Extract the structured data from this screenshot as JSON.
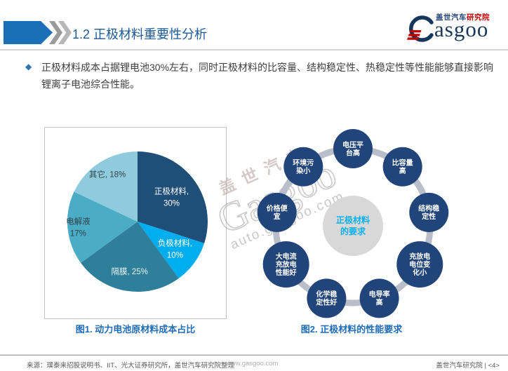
{
  "header": {
    "title": "1.2 正极材料重要性分析",
    "logo": {
      "brand_cn": "盖世汽车",
      "brand_cn_red": "研究院",
      "brand_en_tail": "asgoo",
      "brand_full": "Gasgoo"
    }
  },
  "icons": {
    "bullet_diamond": "◆"
  },
  "bullet": {
    "text": "正极材料成本占据锂电池30%左右，同时正极材料的比容量、结构稳定性、热稳定性等性能能够直接影响锂离子电池综合性能。"
  },
  "chart_data": [
    {
      "type": "pie",
      "title": "图1. 动力电池原材料成本占比",
      "start_angle_deg_from_top": 0,
      "clockwise": true,
      "unit": "%",
      "slices": [
        {
          "label": "正极材料",
          "value": 30,
          "color": "#1F4E79",
          "label_lines": [
            "正极材料,",
            "30%"
          ],
          "label_color": "#FFFFFF",
          "label_r": 0.6
        },
        {
          "label": "负极材料",
          "value": 10,
          "color": "#00AEEF",
          "label_lines": [
            "负极材料,",
            "10%"
          ],
          "label_color": "#FFFFFF",
          "label_r": 0.66
        },
        {
          "label": "隔膜",
          "value": 25,
          "color": "#2E7F99",
          "label_lines": [
            "隔膜, 25%"
          ],
          "label_color": "#EAF3F6",
          "label_r": 0.72
        },
        {
          "label": "电解液",
          "value": 17,
          "color": "#4BACC6",
          "label_lines": [
            "电解液",
            "17%"
          ],
          "label_color": "#33434C",
          "label_r": 0.85
        },
        {
          "label": "其它",
          "value": 18,
          "color": "#8FCBDC",
          "label_lines": [
            "其它, 18%"
          ],
          "label_color": "#33434C",
          "label_r": 0.8
        }
      ]
    },
    {
      "type": "cycle-diagram",
      "title": "图2. 正极材料的性能要求",
      "center": {
        "lines": [
          "正极材料",
          "的要求"
        ],
        "bg_color": "#D8D8D8",
        "text_color": "#00B0F0"
      },
      "node_color": "#21457A",
      "node_text_color": "#FFFFFF",
      "ring_color": "#B9BEC8",
      "nodes": [
        {
          "label": "电压平台高",
          "lines": [
            "电压平",
            "台高"
          ]
        },
        {
          "label": "比容量高",
          "lines": [
            "比容量",
            "高"
          ]
        },
        {
          "label": "结构稳定性",
          "lines": [
            "结构稳",
            "定性"
          ]
        },
        {
          "label": "充放电电位变化小",
          "lines": [
            "充放电",
            "电位变",
            "化小"
          ]
        },
        {
          "label": "电导率高",
          "lines": [
            "电导率",
            "高"
          ]
        },
        {
          "label": "化学稳定性好",
          "lines": [
            "化学稳",
            "定性好"
          ]
        },
        {
          "label": "大电流充放电性能好",
          "lines": [
            "大电流",
            "充放电",
            "性能好"
          ]
        },
        {
          "label": "价格便宜",
          "lines": [
            "价格便",
            "宜"
          ]
        },
        {
          "label": "环境污染小",
          "lines": [
            "环境污",
            "染小"
          ]
        }
      ]
    }
  ],
  "watermark": {
    "line1": "盖世汽车",
    "line2": "Gasgoo",
    "line3": "auto.gasgoo.com"
  },
  "footer": {
    "source": "来源：璞泰来招股说明书、IIT、光大证券研究所，盖世汽车研究院整理",
    "site": "www.gasgoo.com",
    "page": "盖世汽车研究院 | <4>"
  }
}
